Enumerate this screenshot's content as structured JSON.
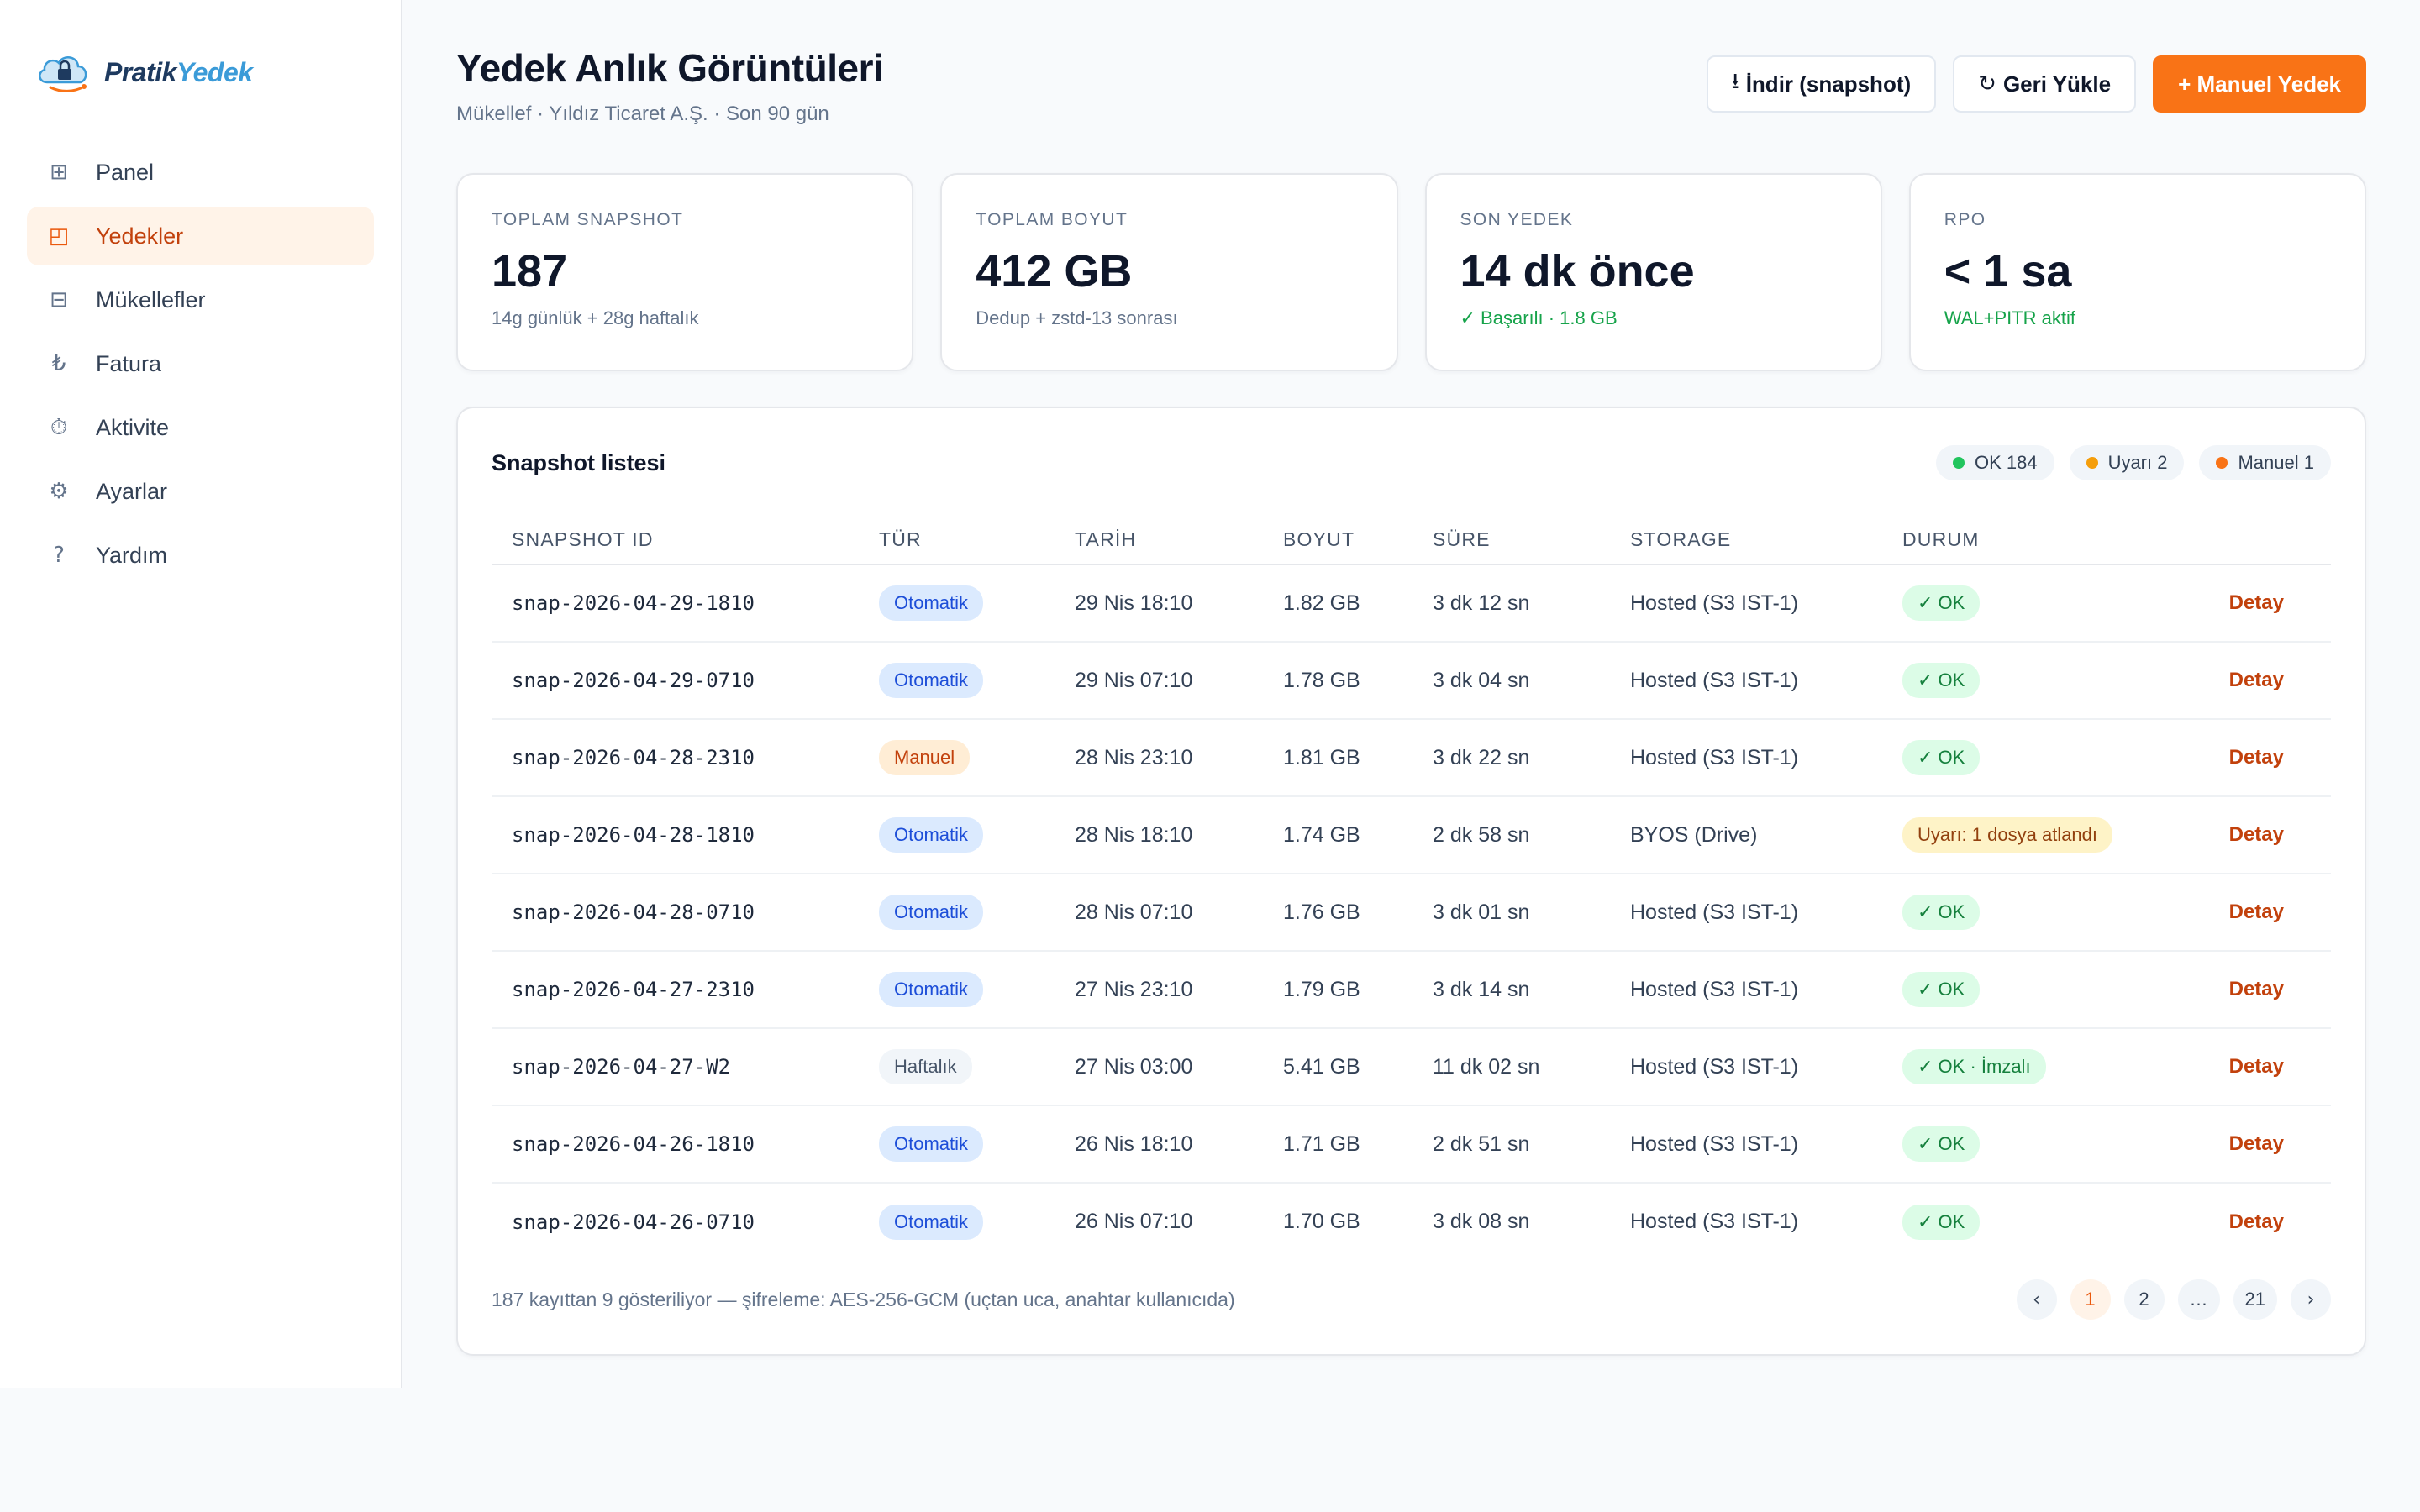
{
  "brand": {
    "name_part1": "Pratik",
    "name_part2": "Yedek",
    "icon": "cloud-lock-icon"
  },
  "sidebar": {
    "items": [
      {
        "label": "Panel",
        "icon": "grid-icon",
        "glyph": "⊞",
        "active": false
      },
      {
        "label": "Yedekler",
        "icon": "backup-icon",
        "glyph": "◰",
        "active": true
      },
      {
        "label": "Mükellefler",
        "icon": "list-icon",
        "glyph": "⊟",
        "active": false
      },
      {
        "label": "Fatura",
        "icon": "lira-icon",
        "glyph": "₺",
        "active": false
      },
      {
        "label": "Aktivite",
        "icon": "stopwatch-icon",
        "glyph": "⏱",
        "active": false
      },
      {
        "label": "Ayarlar",
        "icon": "gear-icon",
        "glyph": "⚙",
        "active": false
      },
      {
        "label": "Yardım",
        "icon": "help-icon",
        "glyph": "?",
        "active": false
      }
    ]
  },
  "header": {
    "title": "Yedek Anlık Görüntüleri",
    "subtitle": "Mükellef · Yıldız Ticaret A.Ş. · Son 90 gün",
    "download_glyph": "⭳",
    "download_label": "İndir (snapshot)",
    "restore_glyph": "↻",
    "restore_label": "Geri Yükle",
    "manual_label": "+ Manuel Yedek"
  },
  "cards": [
    {
      "label": "TOPLAM SNAPSHOT",
      "value": "187",
      "sub": "14g günlük + 28g haftalık",
      "sub_green": false
    },
    {
      "label": "TOPLAM BOYUT",
      "value": "412 GB",
      "sub": "Dedup + zstd-13 sonrası",
      "sub_green": false
    },
    {
      "label": "SON YEDEK",
      "value": "14 dk önce",
      "sub": "✓ Başarılı · 1.8 GB",
      "sub_green": true
    },
    {
      "label": "RPO",
      "value": "< 1 sa",
      "sub": "WAL+PITR aktif",
      "sub_green": true
    }
  ],
  "panel": {
    "title": "Snapshot listesi",
    "legend": [
      {
        "label": "OK 184",
        "color": "#22c55e"
      },
      {
        "label": "Uyarı 2",
        "color": "#f59e0b"
      },
      {
        "label": "Manuel 1",
        "color": "#f97316"
      }
    ],
    "columns": [
      "SNAPSHOT ID",
      "TÜR",
      "TARİH",
      "BOYUT",
      "SÜRE",
      "STORAGE",
      "DURUM",
      ""
    ],
    "rows": [
      {
        "id": "snap-2026-04-29-1810",
        "type": "Otomatik",
        "kind": "auto",
        "date": "29 Nis 18:10",
        "size": "1.82 GB",
        "duration": "3 dk 12 sn",
        "storage": "Hosted (S3 IST-1)",
        "status": "✓ OK",
        "status_kind": "ok",
        "action": "Detay"
      },
      {
        "id": "snap-2026-04-29-0710",
        "type": "Otomatik",
        "kind": "auto",
        "date": "29 Nis 07:10",
        "size": "1.78 GB",
        "duration": "3 dk 04 sn",
        "storage": "Hosted (S3 IST-1)",
        "status": "✓ OK",
        "status_kind": "ok",
        "action": "Detay"
      },
      {
        "id": "snap-2026-04-28-2310",
        "type": "Manuel",
        "kind": "manual",
        "date": "28 Nis 23:10",
        "size": "1.81 GB",
        "duration": "3 dk 22 sn",
        "storage": "Hosted (S3 IST-1)",
        "status": "✓ OK",
        "status_kind": "ok",
        "action": "Detay"
      },
      {
        "id": "snap-2026-04-28-1810",
        "type": "Otomatik",
        "kind": "auto",
        "date": "28 Nis 18:10",
        "size": "1.74 GB",
        "duration": "2 dk 58 sn",
        "storage": "BYOS (Drive)",
        "status": "Uyarı: 1 dosya atlandı",
        "status_kind": "warn",
        "action": "Detay"
      },
      {
        "id": "snap-2026-04-28-0710",
        "type": "Otomatik",
        "kind": "auto",
        "date": "28 Nis 07:10",
        "size": "1.76 GB",
        "duration": "3 dk 01 sn",
        "storage": "Hosted (S3 IST-1)",
        "status": "✓ OK",
        "status_kind": "ok",
        "action": "Detay"
      },
      {
        "id": "snap-2026-04-27-2310",
        "type": "Otomatik",
        "kind": "auto",
        "date": "27 Nis 23:10",
        "size": "1.79 GB",
        "duration": "3 dk 14 sn",
        "storage": "Hosted (S3 IST-1)",
        "status": "✓ OK",
        "status_kind": "ok",
        "action": "Detay"
      },
      {
        "id": "snap-2026-04-27-W2",
        "type": "Haftalık",
        "kind": "weekly",
        "date": "27 Nis 03:00",
        "size": "5.41 GB",
        "duration": "11 dk 02 sn",
        "storage": "Hosted (S3 IST-1)",
        "status": "✓ OK · İmzalı",
        "status_kind": "ok",
        "action": "Detay"
      },
      {
        "id": "snap-2026-04-26-1810",
        "type": "Otomatik",
        "kind": "auto",
        "date": "26 Nis 18:10",
        "size": "1.71 GB",
        "duration": "2 dk 51 sn",
        "storage": "Hosted (S3 IST-1)",
        "status": "✓ OK",
        "status_kind": "ok",
        "action": "Detay"
      },
      {
        "id": "snap-2026-04-26-0710",
        "type": "Otomatik",
        "kind": "auto",
        "date": "26 Nis 07:10",
        "size": "1.70 GB",
        "duration": "3 dk 08 sn",
        "storage": "Hosted (S3 IST-1)",
        "status": "✓ OK",
        "status_kind": "ok",
        "action": "Detay"
      }
    ],
    "footer_text": "187 kayıttan 9 gösteriliyor — şifreleme: AES-256-GCM (uçtan uca, anahtar kullanıcıda)",
    "pager": [
      {
        "label": "‹",
        "kind": "arrow",
        "name": "prev-page-button"
      },
      {
        "label": "1",
        "kind": "active",
        "name": "page-1-button"
      },
      {
        "label": "2",
        "kind": "",
        "name": "page-2-button"
      },
      {
        "label": "…",
        "kind": "",
        "name": "page-ellipsis"
      },
      {
        "label": "21",
        "kind": "",
        "name": "page-21-button"
      },
      {
        "label": "›",
        "kind": "arrow",
        "name": "next-page-button"
      }
    ]
  }
}
